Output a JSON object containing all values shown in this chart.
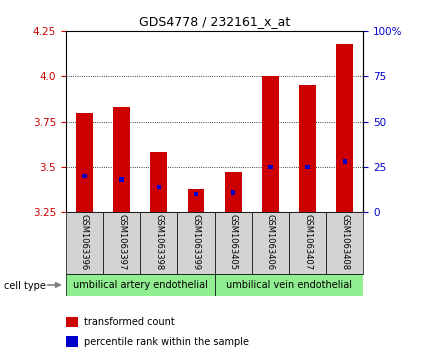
{
  "title": "GDS4778 / 232161_x_at",
  "samples": [
    "GSM1063396",
    "GSM1063397",
    "GSM1063398",
    "GSM1063399",
    "GSM1063405",
    "GSM1063406",
    "GSM1063407",
    "GSM1063408"
  ],
  "transformed_counts": [
    3.8,
    3.83,
    3.58,
    3.38,
    3.47,
    4.0,
    3.95,
    4.18
  ],
  "percentile_ranks": [
    20,
    18,
    14,
    10,
    11,
    25,
    25,
    28
  ],
  "y_min": 3.25,
  "y_max": 4.25,
  "y_ticks": [
    3.25,
    3.5,
    3.75,
    4.0,
    4.25
  ],
  "right_y_ticks": [
    0,
    25,
    50,
    75,
    100
  ],
  "right_y_labels": [
    "0",
    "25",
    "50",
    "75",
    "100%"
  ],
  "cell_type_groups": [
    {
      "label": "umbilical artery endothelial",
      "start": 0,
      "end": 4,
      "color": "#90EE90"
    },
    {
      "label": "umbilical vein endothelial",
      "start": 4,
      "end": 8,
      "color": "#90EE90"
    }
  ],
  "bar_color": "#CC0000",
  "blue_bar_color": "#0000CC",
  "bar_width": 0.45,
  "blue_bar_width": 0.12,
  "background_label": "#D3D3D3",
  "legend_red_label": "transformed count",
  "legend_blue_label": "percentile rank within the sample",
  "cell_type_label": "cell type",
  "tick_color_left": "#CC0000",
  "tick_color_right": "#0000CC"
}
